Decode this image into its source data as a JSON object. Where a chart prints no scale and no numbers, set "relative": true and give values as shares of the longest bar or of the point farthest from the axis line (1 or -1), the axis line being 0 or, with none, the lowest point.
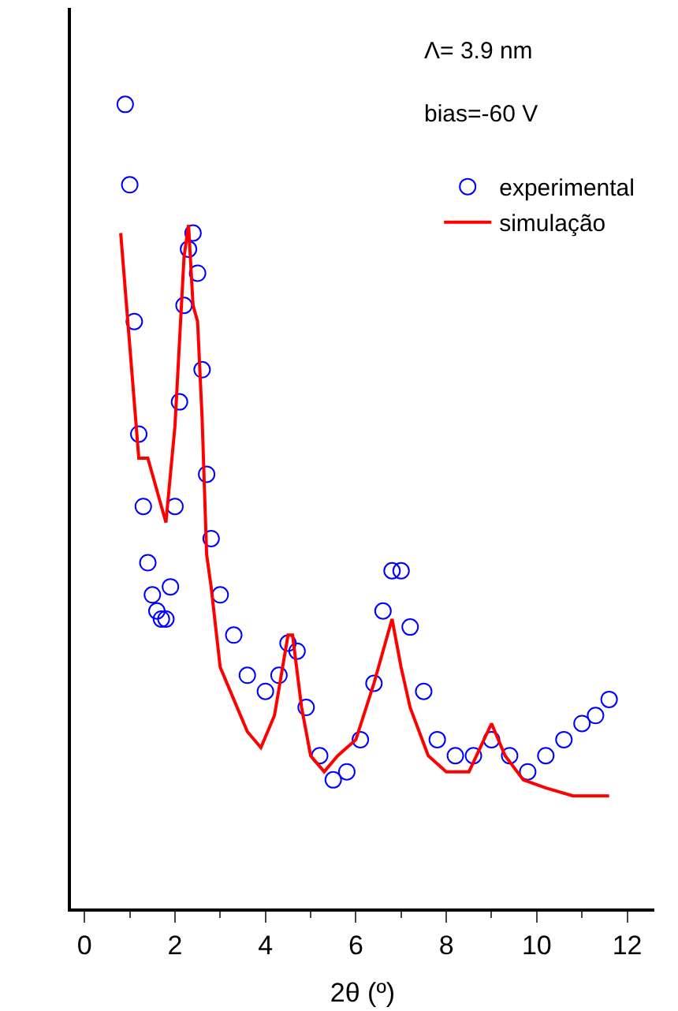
{
  "chart_data": {
    "type": "scatter",
    "relative": true,
    "xlabel": "2θ (º)",
    "xlim": [
      -0.3,
      12.6
    ],
    "xticks": [
      0,
      2,
      4,
      6,
      8,
      10,
      12
    ],
    "grid": false,
    "legend": "top right",
    "annotations": [
      "Λ= 3.9 nm",
      "bias=-60 V"
    ],
    "series": [
      {
        "name": "experimental",
        "marker": "circle",
        "color": "#0000ff",
        "x": [
          0.9,
          1.0,
          1.1,
          1.2,
          1.3,
          1.4,
          1.5,
          1.6,
          1.7,
          1.8,
          1.9,
          2.0,
          2.1,
          2.2,
          2.3,
          2.4,
          2.5,
          2.6,
          2.7,
          2.8,
          3.0,
          3.3,
          3.6,
          4.0,
          4.3,
          4.5,
          4.7,
          4.9,
          5.2,
          5.5,
          5.8,
          6.1,
          6.4,
          6.6,
          6.8,
          7.0,
          7.2,
          7.5,
          7.8,
          8.2,
          8.6,
          9.0,
          9.4,
          9.8,
          10.2,
          10.6,
          11.0,
          11.3,
          11.6
        ],
        "values": [
          1.0,
          0.9,
          0.73,
          0.59,
          0.5,
          0.43,
          0.39,
          0.37,
          0.36,
          0.36,
          0.4,
          0.5,
          0.63,
          0.75,
          0.82,
          0.84,
          0.79,
          0.67,
          0.54,
          0.46,
          0.39,
          0.34,
          0.29,
          0.27,
          0.29,
          0.33,
          0.32,
          0.25,
          0.19,
          0.16,
          0.17,
          0.21,
          0.28,
          0.37,
          0.42,
          0.42,
          0.35,
          0.27,
          0.21,
          0.19,
          0.19,
          0.21,
          0.19,
          0.17,
          0.19,
          0.21,
          0.23,
          0.24,
          0.26
        ]
      },
      {
        "name": "simulação",
        "type": "line",
        "line_style": "solid",
        "color": "#ff0000",
        "x": [
          0.8,
          1.0,
          1.2,
          1.4,
          1.6,
          1.8,
          2.0,
          2.2,
          2.3,
          2.4,
          2.5,
          2.6,
          2.7,
          2.8,
          3.0,
          3.3,
          3.6,
          3.9,
          4.2,
          4.5,
          4.6,
          4.8,
          5.0,
          5.3,
          5.6,
          6.0,
          6.4,
          6.7,
          6.8,
          7.0,
          7.2,
          7.6,
          8.0,
          8.5,
          9.0,
          9.3,
          9.7,
          10.2,
          10.8,
          11.6
        ],
        "values": [
          0.84,
          0.7,
          0.56,
          0.56,
          0.52,
          0.48,
          0.6,
          0.81,
          0.85,
          0.75,
          0.73,
          0.61,
          0.44,
          0.4,
          0.3,
          0.26,
          0.22,
          0.2,
          0.24,
          0.34,
          0.34,
          0.25,
          0.19,
          0.17,
          0.19,
          0.21,
          0.28,
          0.34,
          0.36,
          0.3,
          0.25,
          0.19,
          0.17,
          0.17,
          0.23,
          0.19,
          0.16,
          0.15,
          0.14,
          0.14
        ]
      }
    ]
  }
}
